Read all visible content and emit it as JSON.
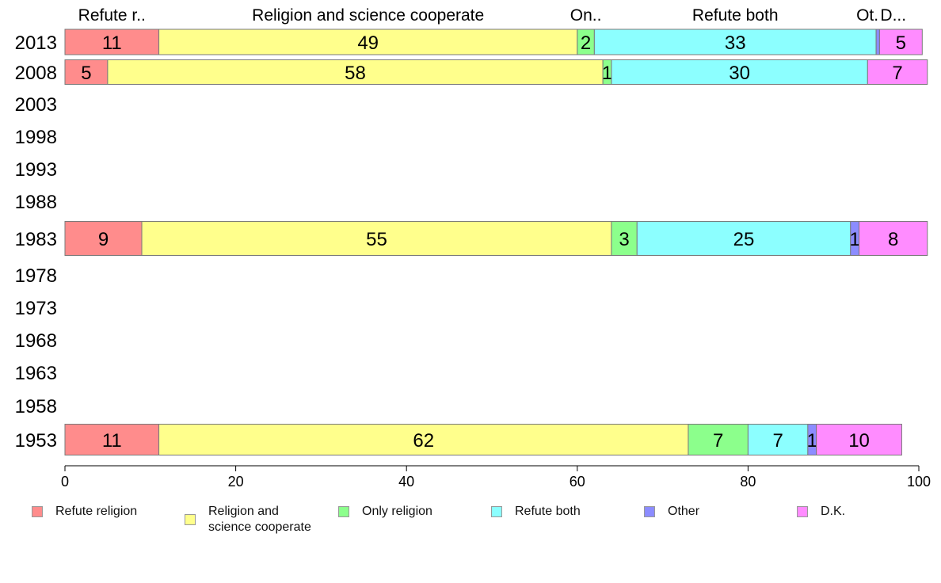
{
  "chart_data": {
    "type": "bar",
    "orientation": "horizontal",
    "stacked": true,
    "categories": [
      "2013",
      "2008",
      "2003",
      "1998",
      "1993",
      "1988",
      "1983",
      "1978",
      "1973",
      "1968",
      "1963",
      "1958",
      "1953"
    ],
    "series": [
      {
        "name": "Refute religion",
        "color": "#ff8c8c",
        "values": [
          11,
          5,
          null,
          null,
          null,
          null,
          9,
          null,
          null,
          null,
          null,
          null,
          11
        ]
      },
      {
        "name": "Religion and science cooperate",
        "color": "#ffff8c",
        "values": [
          49,
          58,
          null,
          null,
          null,
          null,
          55,
          null,
          null,
          null,
          null,
          null,
          62
        ]
      },
      {
        "name": "Only religion",
        "color": "#8cff8c",
        "values": [
          2,
          1,
          null,
          null,
          null,
          null,
          3,
          null,
          null,
          null,
          null,
          null,
          7
        ]
      },
      {
        "name": "Refute both",
        "color": "#8cffff",
        "values": [
          33,
          30,
          null,
          null,
          null,
          null,
          25,
          null,
          null,
          null,
          null,
          null,
          7
        ]
      },
      {
        "name": "Other",
        "color": "#8c8cff",
        "values": [
          0.4,
          0,
          null,
          null,
          null,
          null,
          1,
          null,
          null,
          null,
          null,
          null,
          1
        ]
      },
      {
        "name": "D.K.",
        "color": "#ff8cff",
        "values": [
          5,
          7,
          null,
          null,
          null,
          null,
          8,
          null,
          null,
          null,
          null,
          null,
          10
        ]
      }
    ],
    "data_labels": [
      [
        "11",
        "49",
        "2",
        "33",
        "",
        "5"
      ],
      [
        "5",
        "58",
        "1",
        "30",
        "",
        "7"
      ],
      null,
      null,
      null,
      null,
      [
        "9",
        "55",
        "3",
        "25",
        "1",
        "8"
      ],
      null,
      null,
      null,
      null,
      null,
      [
        "11",
        "62",
        "7",
        "7",
        "1",
        "10"
      ]
    ],
    "top_labels": [
      "Refute r..",
      "Religion and science cooperate",
      "On..",
      "Refute both",
      "Ot.",
      "D..."
    ],
    "xlim": [
      0,
      100
    ],
    "x_ticks": [
      "0",
      "20",
      "40",
      "60",
      "80",
      "100"
    ],
    "legend_position": "bottom",
    "legend_labels": [
      "Refute religion",
      "Religion and\nscience cooperate",
      "Only religion",
      "Refute both",
      "Other",
      "D.K."
    ],
    "grid": false
  }
}
